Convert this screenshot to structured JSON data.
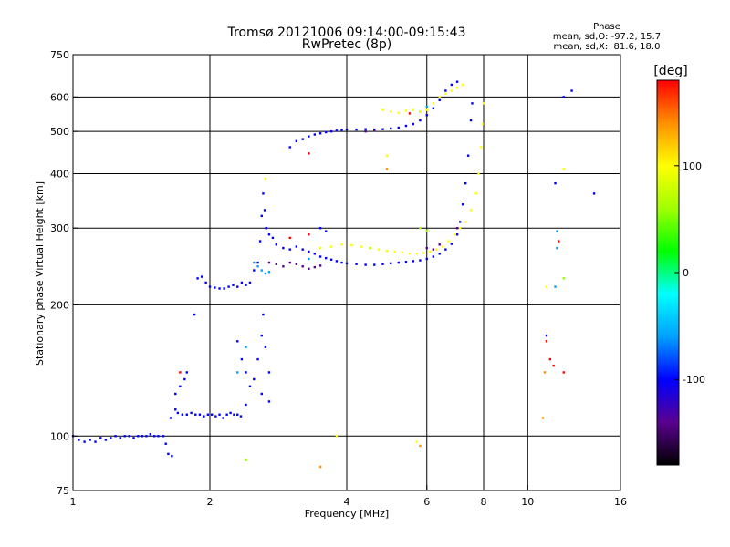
{
  "chart_data": {
    "type": "scatter",
    "title": "Tromsø 20121006 09:14:00-09:15:43",
    "subtitle": "RwPretec (8p)",
    "xlabel": "Frequency [MHz]",
    "ylabel": "Stationary phase Virtual Height [km]",
    "x_scale": "log2",
    "y_scale": "log",
    "xlim": [
      1,
      16
    ],
    "ylim": [
      75,
      750
    ],
    "x_ticks": [
      1,
      2,
      4,
      6,
      8,
      10,
      16
    ],
    "y_ticks": [
      75,
      100,
      200,
      300,
      400,
      500,
      600,
      750
    ],
    "grid": true,
    "phase_box": {
      "title": "Phase",
      "line_o": "mean, sd,O: -97.2, 15.7",
      "line_x": "mean, sd,X:  81.6, 18.0"
    },
    "colorbar": {
      "label": "[deg]",
      "range": [
        -180,
        180
      ],
      "ticks": [
        100,
        0,
        -100
      ],
      "colors": [
        "#000000",
        "#5a0090",
        "#0000ff",
        "#00a0ff",
        "#00ffff",
        "#00ff00",
        "#a0ff00",
        "#ffff00",
        "#ff9000",
        "#ff0000"
      ]
    },
    "series": [
      {
        "phase": -100,
        "points": [
          [
            1.0,
            100
          ],
          [
            1.03,
            98
          ],
          [
            1.06,
            97
          ],
          [
            1.09,
            98
          ],
          [
            1.12,
            97
          ],
          [
            1.15,
            99
          ],
          [
            1.18,
            98
          ],
          [
            1.21,
            99
          ],
          [
            1.24,
            100
          ],
          [
            1.27,
            99
          ],
          [
            1.3,
            100
          ],
          [
            1.33,
            100
          ],
          [
            1.36,
            99
          ],
          [
            1.39,
            100
          ],
          [
            1.42,
            100
          ],
          [
            1.45,
            100
          ],
          [
            1.48,
            101
          ],
          [
            1.51,
            100
          ],
          [
            1.54,
            100
          ],
          [
            1.58,
            100
          ],
          [
            1.6,
            96
          ],
          [
            1.64,
            110
          ],
          [
            1.68,
            115
          ],
          [
            1.7,
            113
          ],
          [
            1.74,
            112
          ],
          [
            1.78,
            112
          ],
          [
            1.82,
            113
          ],
          [
            1.86,
            112
          ],
          [
            1.9,
            112
          ],
          [
            1.94,
            111
          ],
          [
            1.98,
            112
          ],
          [
            2.02,
            112
          ],
          [
            2.06,
            111
          ],
          [
            2.1,
            112
          ],
          [
            2.14,
            110
          ],
          [
            2.18,
            112
          ],
          [
            2.22,
            113
          ],
          [
            2.26,
            112
          ],
          [
            2.3,
            112
          ],
          [
            2.34,
            111
          ],
          [
            1.62,
            91
          ],
          [
            1.65,
            90
          ],
          [
            1.68,
            125
          ],
          [
            1.72,
            130
          ],
          [
            1.76,
            135
          ],
          [
            1.78,
            140
          ],
          [
            1.85,
            190
          ],
          [
            1.88,
            230
          ],
          [
            1.92,
            232
          ],
          [
            1.96,
            225
          ],
          [
            2.0,
            220
          ],
          [
            2.05,
            219
          ],
          [
            2.1,
            218
          ],
          [
            2.15,
            218
          ],
          [
            2.2,
            220
          ],
          [
            2.25,
            222
          ],
          [
            2.3,
            220
          ],
          [
            2.35,
            225
          ],
          [
            2.4,
            222
          ],
          [
            2.45,
            225
          ],
          [
            2.5,
            240
          ],
          [
            2.55,
            250
          ],
          [
            2.58,
            280
          ],
          [
            2.6,
            320
          ],
          [
            2.62,
            360
          ],
          [
            2.64,
            330
          ],
          [
            2.66,
            300
          ],
          [
            2.7,
            290
          ],
          [
            2.75,
            285
          ],
          [
            2.8,
            275
          ],
          [
            2.9,
            270
          ],
          [
            3.0,
            268
          ],
          [
            3.1,
            272
          ],
          [
            3.2,
            268
          ],
          [
            3.3,
            265
          ],
          [
            3.4,
            262
          ],
          [
            3.5,
            258
          ],
          [
            3.6,
            256
          ],
          [
            3.7,
            254
          ],
          [
            3.8,
            252
          ],
          [
            3.9,
            250
          ],
          [
            4.0,
            249
          ],
          [
            4.2,
            248
          ],
          [
            4.4,
            247
          ],
          [
            4.6,
            247
          ],
          [
            4.8,
            248
          ],
          [
            5.0,
            249
          ],
          [
            5.2,
            250
          ],
          [
            5.4,
            251
          ],
          [
            5.6,
            252
          ],
          [
            5.8,
            253
          ],
          [
            6.0,
            255
          ],
          [
            6.2,
            258
          ],
          [
            6.4,
            262
          ],
          [
            6.6,
            268
          ],
          [
            6.8,
            276
          ],
          [
            7.0,
            290
          ],
          [
            7.1,
            310
          ],
          [
            7.2,
            340
          ],
          [
            7.3,
            380
          ],
          [
            7.4,
            440
          ],
          [
            7.5,
            530
          ],
          [
            7.55,
            580
          ],
          [
            3.0,
            460
          ],
          [
            3.1,
            475
          ],
          [
            3.2,
            480
          ],
          [
            3.3,
            487
          ],
          [
            3.4,
            492
          ],
          [
            3.5,
            495
          ],
          [
            3.6,
            498
          ],
          [
            3.7,
            500
          ],
          [
            3.8,
            502
          ],
          [
            3.9,
            504
          ],
          [
            4.0,
            505
          ],
          [
            4.2,
            505
          ],
          [
            4.4,
            506
          ],
          [
            4.6,
            505
          ],
          [
            4.8,
            506
          ],
          [
            5.0,
            508
          ],
          [
            5.2,
            510
          ],
          [
            5.4,
            515
          ],
          [
            5.6,
            520
          ],
          [
            5.8,
            530
          ],
          [
            6.0,
            545
          ],
          [
            6.2,
            565
          ],
          [
            6.4,
            590
          ],
          [
            6.6,
            620
          ],
          [
            6.8,
            640
          ],
          [
            7.0,
            650
          ],
          [
            2.3,
            165
          ],
          [
            2.35,
            150
          ],
          [
            2.4,
            140
          ],
          [
            2.45,
            130
          ],
          [
            2.5,
            135
          ],
          [
            2.55,
            150
          ],
          [
            2.6,
            170
          ],
          [
            2.62,
            190
          ],
          [
            2.65,
            160
          ],
          [
            2.7,
            140
          ],
          [
            2.4,
            118
          ],
          [
            2.6,
            125
          ],
          [
            2.7,
            120
          ],
          [
            11.0,
            170
          ],
          [
            11.5,
            380
          ],
          [
            12.0,
            600
          ],
          [
            12.5,
            620
          ],
          [
            14.0,
            360
          ],
          [
            3.5,
            300
          ],
          [
            3.6,
            295
          ]
        ]
      },
      {
        "phase": -150,
        "points": [
          [
            2.7,
            250
          ],
          [
            2.8,
            248
          ],
          [
            2.9,
            245
          ],
          [
            3.0,
            250
          ],
          [
            3.1,
            248
          ],
          [
            3.2,
            245
          ],
          [
            3.3,
            242
          ],
          [
            3.4,
            244
          ],
          [
            3.5,
            246
          ],
          [
            6.0,
            270
          ],
          [
            6.2,
            268
          ],
          [
            6.4,
            275
          ],
          [
            7.0,
            300
          ],
          [
            4.4,
            500
          ],
          [
            4.6,
            502
          ]
        ]
      },
      {
        "phase": -60,
        "points": [
          [
            2.5,
            250
          ],
          [
            2.55,
            245
          ],
          [
            2.6,
            240
          ],
          [
            2.65,
            236
          ],
          [
            2.7,
            238
          ],
          [
            2.4,
            160
          ],
          [
            2.3,
            140
          ],
          [
            3.3,
            255
          ],
          [
            5.8,
            555
          ],
          [
            6.0,
            570
          ],
          [
            11.5,
            220
          ],
          [
            11.6,
            295
          ],
          [
            11.6,
            270
          ]
        ]
      },
      {
        "phase": 100,
        "points": [
          [
            3.5,
            270
          ],
          [
            3.7,
            272
          ],
          [
            3.9,
            275
          ],
          [
            4.1,
            274
          ],
          [
            4.3,
            272
          ],
          [
            4.5,
            270
          ],
          [
            4.7,
            268
          ],
          [
            4.9,
            266
          ],
          [
            5.1,
            265
          ],
          [
            5.3,
            264
          ],
          [
            5.5,
            262
          ],
          [
            5.7,
            262
          ],
          [
            5.9,
            263
          ],
          [
            6.1,
            265
          ],
          [
            6.3,
            268
          ],
          [
            6.5,
            272
          ],
          [
            6.7,
            280
          ],
          [
            6.9,
            290
          ],
          [
            7.1,
            300
          ],
          [
            7.3,
            310
          ],
          [
            7.5,
            330
          ],
          [
            7.7,
            360
          ],
          [
            7.8,
            400
          ],
          [
            7.9,
            460
          ],
          [
            7.95,
            520
          ],
          [
            8.0,
            580
          ],
          [
            4.8,
            560
          ],
          [
            5.0,
            555
          ],
          [
            5.2,
            552
          ],
          [
            5.4,
            558
          ],
          [
            5.6,
            560
          ],
          [
            5.8,
            555
          ],
          [
            6.0,
            560
          ],
          [
            6.2,
            580
          ],
          [
            6.4,
            600
          ],
          [
            6.6,
            610
          ],
          [
            6.8,
            620
          ],
          [
            7.0,
            630
          ],
          [
            7.2,
            640
          ],
          [
            11.0,
            220
          ],
          [
            12.0,
            410
          ],
          [
            2.65,
            390
          ],
          [
            5.7,
            97
          ],
          [
            4.9,
            440
          ],
          [
            3.8,
            100
          ]
        ]
      },
      {
        "phase": 160,
        "points": [
          [
            1.72,
            140
          ],
          [
            3.3,
            290
          ],
          [
            3.3,
            445
          ],
          [
            3.0,
            285
          ],
          [
            11.0,
            165
          ],
          [
            11.2,
            150
          ],
          [
            11.4,
            145
          ],
          [
            12.0,
            140
          ],
          [
            11.7,
            280
          ],
          [
            5.5,
            550
          ]
        ]
      },
      {
        "phase": 40,
        "points": [
          [
            2.4,
            88
          ],
          [
            4.5,
            270
          ],
          [
            5.8,
            300
          ],
          [
            12.0,
            230
          ],
          [
            6.0,
            296
          ]
        ]
      },
      {
        "phase": 130,
        "points": [
          [
            3.5,
            85
          ],
          [
            5.8,
            95
          ],
          [
            10.8,
            110
          ],
          [
            10.9,
            140
          ],
          [
            4.9,
            410
          ]
        ]
      }
    ]
  }
}
